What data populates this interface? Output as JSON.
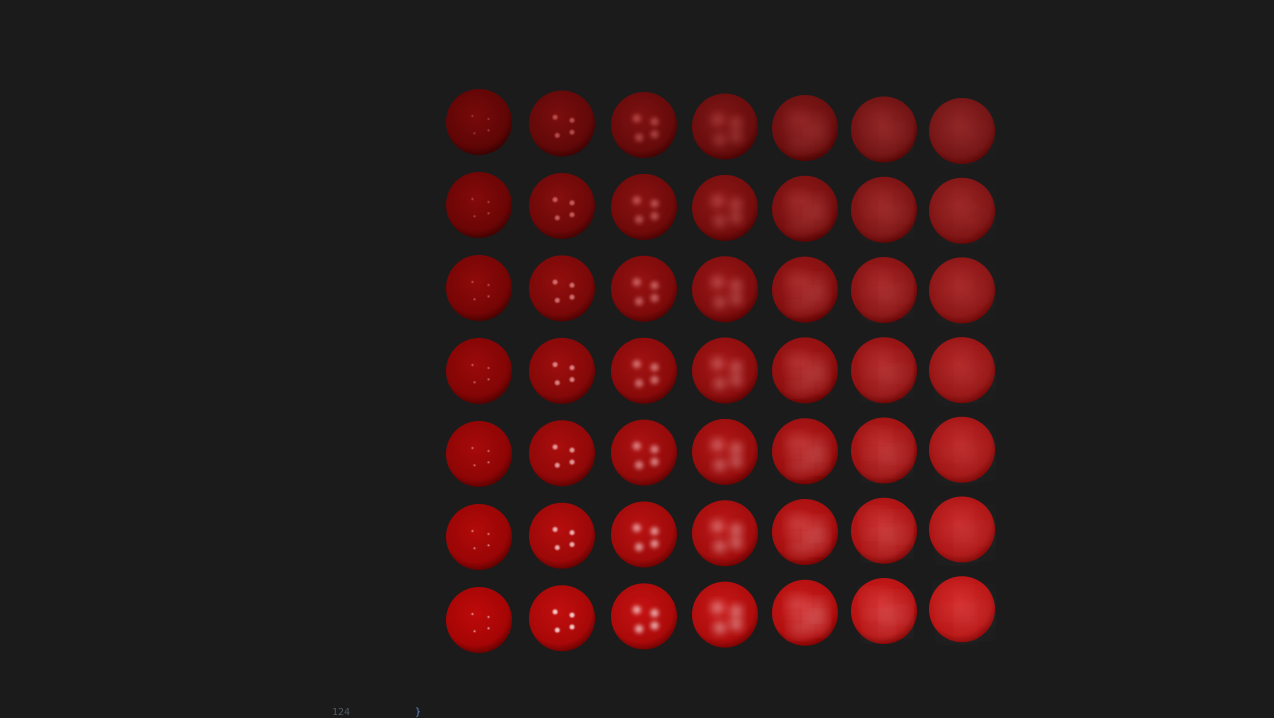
{
  "footer": {
    "line_number": "124",
    "code": "}"
  }
}
